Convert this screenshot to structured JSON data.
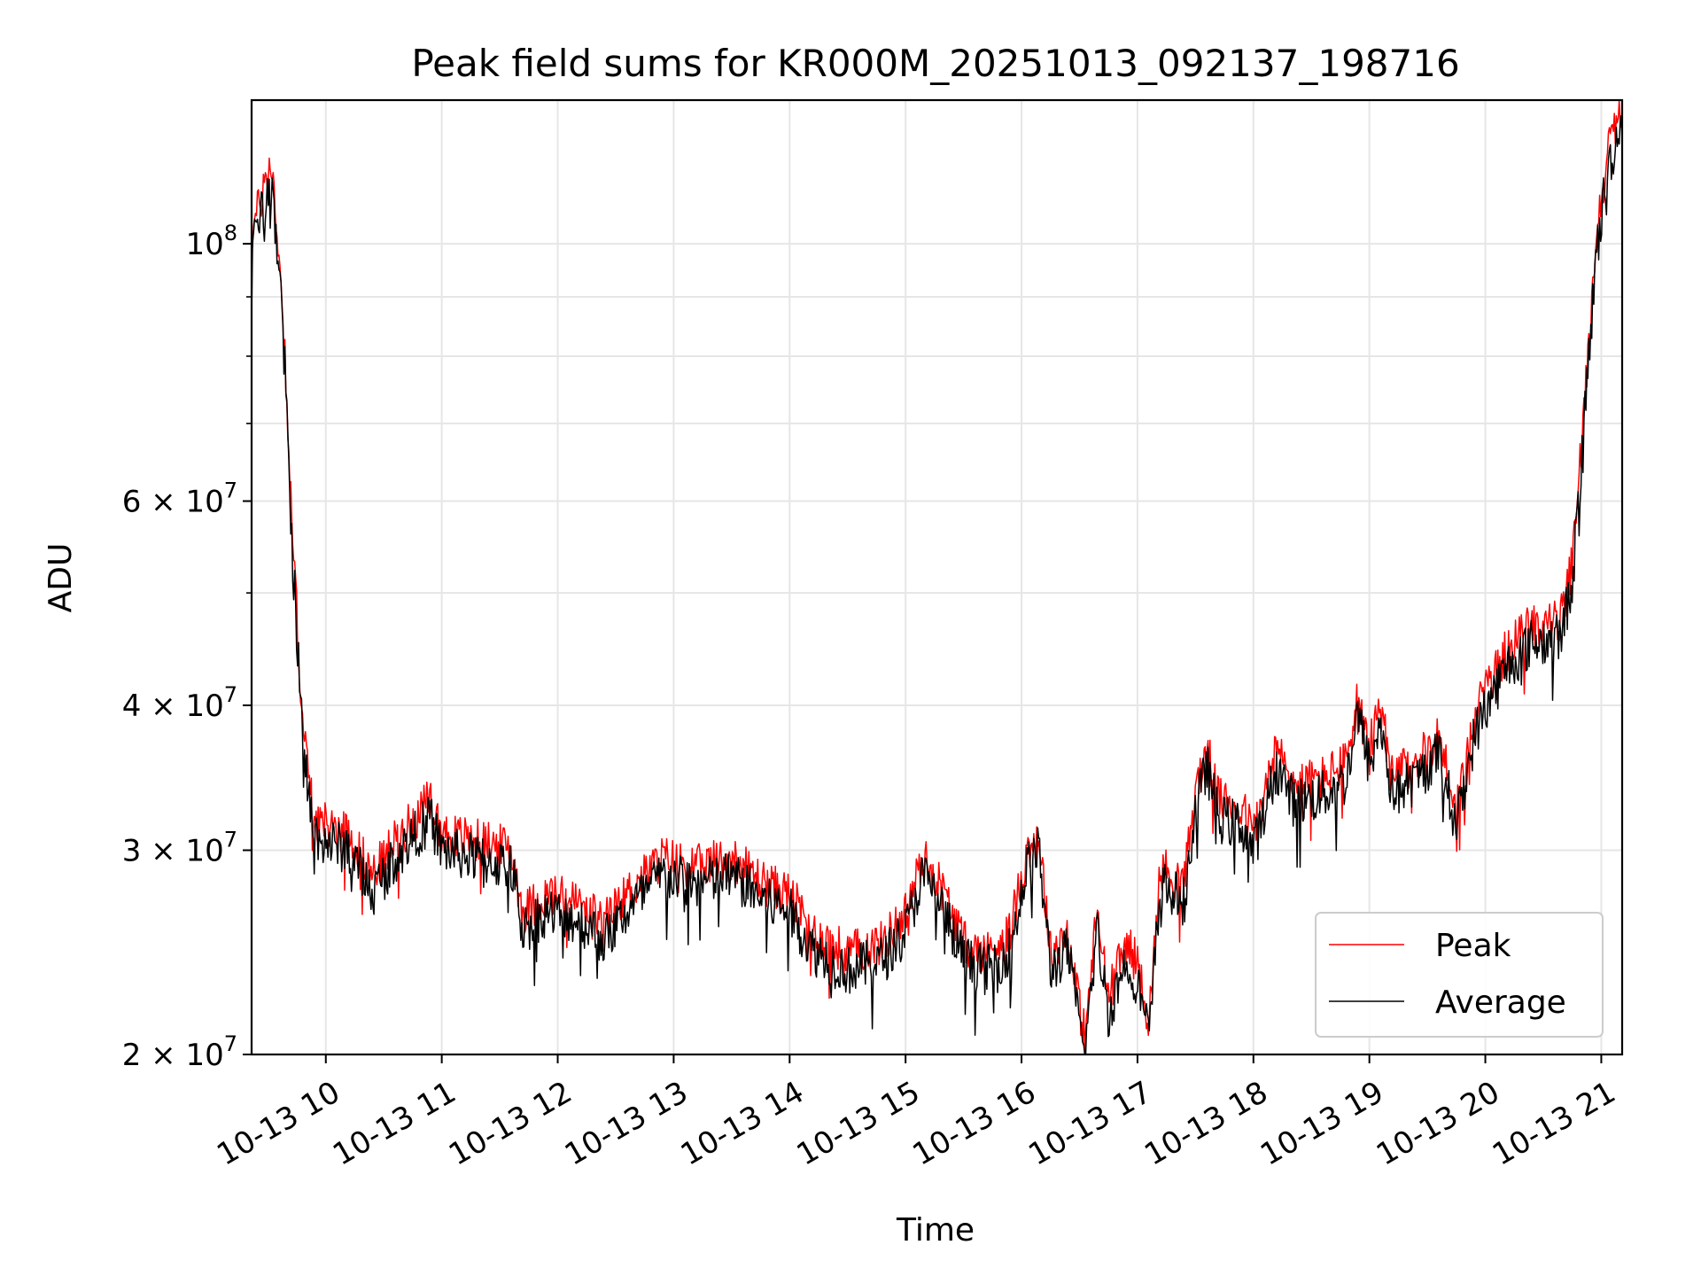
{
  "chart_data": {
    "type": "line",
    "title": "Peak field sums for KR000M_20251013_092137_198716",
    "xlabel": "Time",
    "ylabel": "ADU",
    "yscale": "log",
    "xlim": [
      9.36,
      21.18
    ],
    "ylim": [
      20000000,
      133000000
    ],
    "grid": true,
    "legend_position": "lower-right",
    "x_ticks": [
      {
        "value": 10,
        "label": "10-13 10"
      },
      {
        "value": 11,
        "label": "10-13 11"
      },
      {
        "value": 12,
        "label": "10-13 12"
      },
      {
        "value": 13,
        "label": "10-13 13"
      },
      {
        "value": 14,
        "label": "10-13 14"
      },
      {
        "value": 15,
        "label": "10-13 15"
      },
      {
        "value": 16,
        "label": "10-13 16"
      },
      {
        "value": 17,
        "label": "10-13 17"
      },
      {
        "value": 18,
        "label": "10-13 18"
      },
      {
        "value": 19,
        "label": "10-13 19"
      },
      {
        "value": 20,
        "label": "10-13 20"
      },
      {
        "value": 21,
        "label": "10-13 21"
      }
    ],
    "y_major_ticks": [
      {
        "value": 100000000,
        "base": "10",
        "exp": "8"
      },
      {
        "value": 60000000,
        "base": "6 × 10",
        "exp": "7"
      },
      {
        "value": 40000000,
        "base": "4 × 10",
        "exp": "7"
      },
      {
        "value": 30000000,
        "base": "3 × 10",
        "exp": "7"
      },
      {
        "value": 20000000,
        "base": "2 × 10",
        "exp": "7"
      }
    ],
    "y_minor_ticks": [
      50000000,
      70000000,
      80000000,
      90000000
    ],
    "series": [
      {
        "name": "Peak",
        "color": "#ff0000",
        "noise": 0.045,
        "offset": 1.02,
        "anchors": [
          [
            9.36,
            100000000
          ],
          [
            9.45,
            108000000
          ],
          [
            9.5,
            115000000
          ],
          [
            9.55,
            110000000
          ],
          [
            9.6,
            95000000
          ],
          [
            9.65,
            78000000
          ],
          [
            9.7,
            58000000
          ],
          [
            9.75,
            47000000
          ],
          [
            9.8,
            38000000
          ],
          [
            9.85,
            34000000
          ],
          [
            9.9,
            31500000
          ],
          [
            10.0,
            31000000
          ],
          [
            10.2,
            30500000
          ],
          [
            10.4,
            28000000
          ],
          [
            10.6,
            30000000
          ],
          [
            10.9,
            32500000
          ],
          [
            11.0,
            30500000
          ],
          [
            11.3,
            30000000
          ],
          [
            11.6,
            29500000
          ],
          [
            11.7,
            26000000
          ],
          [
            11.9,
            27000000
          ],
          [
            12.2,
            26500000
          ],
          [
            12.4,
            25500000
          ],
          [
            12.6,
            27000000
          ],
          [
            12.9,
            29000000
          ],
          [
            13.2,
            28500000
          ],
          [
            13.5,
            29000000
          ],
          [
            13.8,
            27500000
          ],
          [
            14.0,
            27000000
          ],
          [
            14.2,
            25000000
          ],
          [
            14.5,
            24000000
          ],
          [
            14.8,
            24500000
          ],
          [
            15.0,
            26000000
          ],
          [
            15.15,
            29000000
          ],
          [
            15.3,
            27500000
          ],
          [
            15.5,
            24500000
          ],
          [
            15.7,
            24000000
          ],
          [
            15.9,
            25000000
          ],
          [
            16.05,
            29500000
          ],
          [
            16.15,
            30500000
          ],
          [
            16.25,
            24000000
          ],
          [
            16.4,
            25000000
          ],
          [
            16.5,
            21500000
          ],
          [
            16.55,
            20500000
          ],
          [
            16.65,
            26000000
          ],
          [
            16.75,
            22000000
          ],
          [
            16.9,
            24500000
          ],
          [
            17.0,
            23500000
          ],
          [
            17.1,
            21000000
          ],
          [
            17.2,
            28500000
          ],
          [
            17.4,
            27500000
          ],
          [
            17.5,
            33000000
          ],
          [
            17.6,
            36000000
          ],
          [
            17.7,
            32500000
          ],
          [
            17.9,
            32000000
          ],
          [
            18.0,
            30500000
          ],
          [
            18.1,
            33000000
          ],
          [
            18.2,
            36000000
          ],
          [
            18.35,
            33500000
          ],
          [
            18.6,
            34000000
          ],
          [
            18.8,
            35000000
          ],
          [
            18.9,
            40000000
          ],
          [
            19.0,
            36000000
          ],
          [
            19.1,
            39000000
          ],
          [
            19.2,
            34000000
          ],
          [
            19.4,
            35000000
          ],
          [
            19.6,
            37000000
          ],
          [
            19.75,
            32000000
          ],
          [
            19.9,
            38000000
          ],
          [
            20.0,
            40500000
          ],
          [
            20.2,
            44000000
          ],
          [
            20.4,
            46000000
          ],
          [
            20.65,
            46500000
          ],
          [
            20.75,
            52000000
          ],
          [
            20.85,
            70000000
          ],
          [
            20.95,
            98000000
          ],
          [
            21.05,
            117000000
          ],
          [
            21.18,
            130000000
          ]
        ]
      },
      {
        "name": "Average",
        "color": "#000000",
        "noise": 0.05,
        "offset": 0.985,
        "anchors": [
          [
            9.36,
            100000000
          ],
          [
            9.45,
            108000000
          ],
          [
            9.5,
            115000000
          ],
          [
            9.55,
            110000000
          ],
          [
            9.6,
            95000000
          ],
          [
            9.65,
            78000000
          ],
          [
            9.7,
            58000000
          ],
          [
            9.75,
            47000000
          ],
          [
            9.8,
            38000000
          ],
          [
            9.85,
            34000000
          ],
          [
            9.9,
            31500000
          ],
          [
            10.0,
            31000000
          ],
          [
            10.2,
            30500000
          ],
          [
            10.4,
            28000000
          ],
          [
            10.6,
            30000000
          ],
          [
            10.9,
            32500000
          ],
          [
            11.0,
            30500000
          ],
          [
            11.3,
            30000000
          ],
          [
            11.6,
            29500000
          ],
          [
            11.7,
            26000000
          ],
          [
            11.9,
            27000000
          ],
          [
            12.2,
            26500000
          ],
          [
            12.4,
            25500000
          ],
          [
            12.6,
            27000000
          ],
          [
            12.9,
            29000000
          ],
          [
            13.2,
            28500000
          ],
          [
            13.5,
            29000000
          ],
          [
            13.8,
            27500000
          ],
          [
            14.0,
            27000000
          ],
          [
            14.2,
            25000000
          ],
          [
            14.5,
            24000000
          ],
          [
            14.8,
            24500000
          ],
          [
            15.0,
            26000000
          ],
          [
            15.15,
            29000000
          ],
          [
            15.3,
            27500000
          ],
          [
            15.5,
            24500000
          ],
          [
            15.7,
            24000000
          ],
          [
            15.9,
            25000000
          ],
          [
            16.05,
            29500000
          ],
          [
            16.15,
            30500000
          ],
          [
            16.25,
            24000000
          ],
          [
            16.4,
            25000000
          ],
          [
            16.5,
            21500000
          ],
          [
            16.55,
            20500000
          ],
          [
            16.65,
            26000000
          ],
          [
            16.75,
            22000000
          ],
          [
            16.9,
            24500000
          ],
          [
            17.0,
            23500000
          ],
          [
            17.1,
            21000000
          ],
          [
            17.2,
            28500000
          ],
          [
            17.4,
            27500000
          ],
          [
            17.5,
            33000000
          ],
          [
            17.6,
            36000000
          ],
          [
            17.7,
            32500000
          ],
          [
            17.9,
            32000000
          ],
          [
            18.0,
            30500000
          ],
          [
            18.1,
            33000000
          ],
          [
            18.2,
            36000000
          ],
          [
            18.35,
            33500000
          ],
          [
            18.6,
            34000000
          ],
          [
            18.8,
            35000000
          ],
          [
            18.9,
            40000000
          ],
          [
            19.0,
            36000000
          ],
          [
            19.1,
            39000000
          ],
          [
            19.2,
            34000000
          ],
          [
            19.4,
            35000000
          ],
          [
            19.6,
            37000000
          ],
          [
            19.75,
            32000000
          ],
          [
            19.9,
            38000000
          ],
          [
            20.0,
            40500000
          ],
          [
            20.2,
            44000000
          ],
          [
            20.4,
            46000000
          ],
          [
            20.65,
            46500000
          ],
          [
            20.75,
            52000000
          ],
          [
            20.85,
            70000000
          ],
          [
            20.95,
            98000000
          ],
          [
            21.05,
            117000000
          ],
          [
            21.18,
            130000000
          ]
        ]
      }
    ]
  }
}
